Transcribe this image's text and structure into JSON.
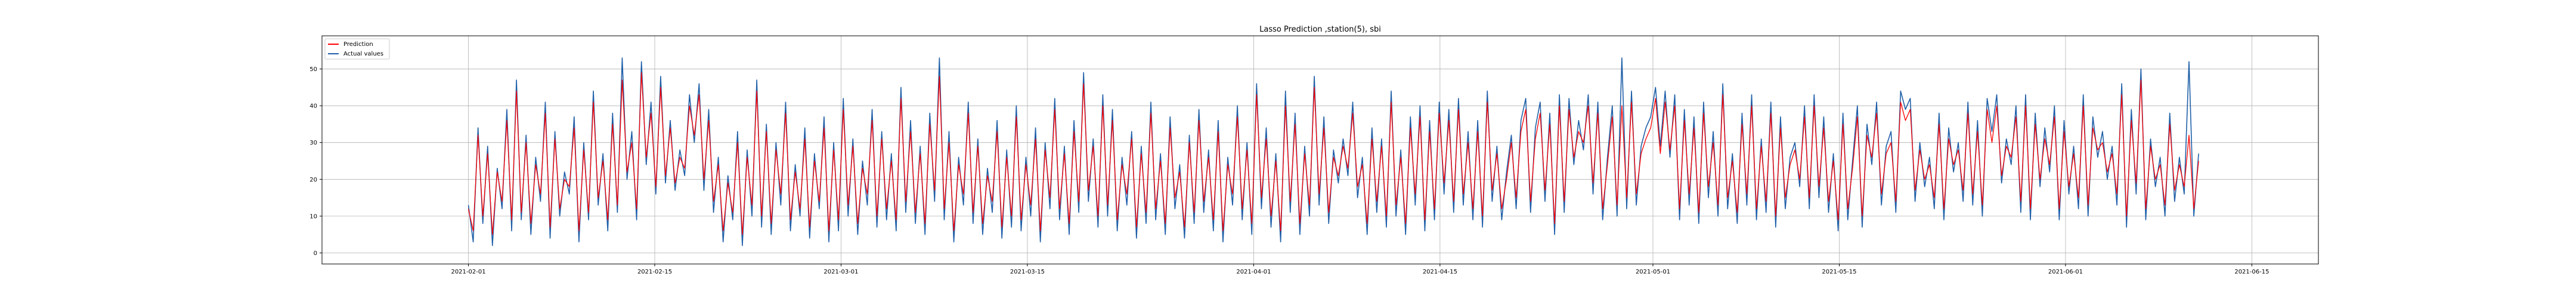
{
  "chart_data": {
    "type": "line",
    "title": "Lasso Prediction ,station(5), sbi",
    "xlabel": "",
    "ylabel": "",
    "x_range": [
      "2021-01-21",
      "2021-06-20"
    ],
    "ylim": [
      -3,
      59
    ],
    "x_ticks": [
      "2021-02-01",
      "2021-02-15",
      "2021-03-01",
      "2021-03-15",
      "2021-04-01",
      "2021-04-15",
      "2021-05-01",
      "2021-05-15",
      "2021-06-01",
      "2021-06-15"
    ],
    "y_ticks": [
      0,
      10,
      20,
      30,
      40,
      50
    ],
    "grid": true,
    "legend": "top-left",
    "series": [
      {
        "name": "Prediction",
        "color": "#ff0000",
        "x_start": "2021-02-01",
        "x_end": "2021-06-11",
        "values": [
          12,
          6,
          32,
          10,
          27,
          5,
          22,
          14,
          36,
          9,
          44,
          11,
          30,
          8,
          24,
          16,
          38,
          7,
          31,
          12,
          20,
          18,
          34,
          6,
          28,
          11,
          41,
          15,
          25,
          9,
          35,
          13,
          47,
          22,
          30,
          12,
          49,
          26,
          38,
          18,
          45,
          21,
          34,
          19,
          26,
          23,
          40,
          32,
          43,
          20,
          36,
          14,
          24,
          6,
          19,
          11,
          30,
          5,
          26,
          13,
          44,
          10,
          33,
          8,
          28,
          16,
          38,
          9,
          22,
          12,
          31,
          7,
          25,
          14,
          34,
          6,
          28,
          9,
          39,
          13,
          29,
          8,
          23,
          16,
          36,
          10,
          31,
          12,
          25,
          9,
          42,
          14,
          33,
          11,
          27,
          8,
          35,
          17,
          48,
          12,
          30,
          6,
          24,
          16,
          38,
          11,
          29,
          8,
          21,
          14,
          33,
          7,
          26,
          10,
          37,
          9,
          24,
          13,
          31,
          6,
          28,
          15,
          39,
          12,
          27,
          8,
          33,
          14,
          46,
          17,
          29,
          10,
          40,
          13,
          36,
          9,
          24,
          16,
          31,
          7,
          27,
          11,
          38,
          12,
          25,
          8,
          34,
          15,
          22,
          7,
          30,
          11,
          36,
          14,
          26,
          9,
          33,
          6,
          24,
          16,
          37,
          12,
          28,
          8,
          43,
          15,
          31,
          10,
          25,
          6,
          40,
          14,
          35,
          8,
          27,
          13,
          45,
          16,
          34,
          11,
          26,
          21,
          29,
          23,
          38,
          18,
          24,
          8,
          31,
          14,
          29,
          10,
          41,
          13,
          26,
          8,
          34,
          16,
          37,
          9,
          33,
          12,
          38,
          19,
          36,
          14,
          39,
          16,
          30,
          12,
          33,
          10,
          41,
          17,
          27,
          12,
          20,
          30,
          15,
          33,
          39,
          14,
          31,
          38,
          17,
          35,
          8,
          40,
          14,
          39,
          26,
          33,
          30,
          40,
          19,
          38,
          12,
          24,
          37,
          13,
          40,
          15,
          41,
          16,
          27,
          31,
          34,
          42,
          27,
          41,
          28,
          40,
          12,
          36,
          16,
          34,
          11,
          38,
          18,
          30,
          13,
          43,
          15,
          25,
          11,
          35,
          16,
          40,
          12,
          29,
          14,
          38,
          10,
          34,
          15,
          24,
          28,
          20,
          37,
          15,
          40,
          18,
          34,
          14,
          25,
          9,
          35,
          12,
          23,
          37,
          10,
          32,
          26,
          38,
          16,
          27,
          30,
          14,
          41,
          36,
          39,
          17,
          28,
          20,
          24,
          15,
          35,
          12,
          31,
          24,
          28,
          17,
          38,
          16,
          33,
          13,
          39,
          30,
          40,
          21,
          29,
          26,
          37,
          14,
          40,
          12,
          35,
          20,
          31,
          24,
          37,
          12,
          33,
          18,
          27,
          15,
          40,
          13,
          34,
          28,
          30,
          22,
          27,
          16,
          43,
          10,
          36,
          19,
          47,
          12,
          29,
          20,
          24,
          13,
          35,
          17,
          24,
          18,
          32,
          12,
          25
        ]
      },
      {
        "name": "Actual values",
        "color": "#1f5fa8",
        "x_start": "2021-02-01",
        "x_end": "2021-06-11",
        "values": [
          13,
          3,
          34,
          8,
          29,
          2,
          23,
          12,
          39,
          6,
          47,
          9,
          32,
          5,
          26,
          14,
          41,
          4,
          33,
          10,
          22,
          16,
          37,
          3,
          30,
          9,
          44,
          13,
          27,
          6,
          38,
          11,
          53,
          20,
          33,
          9,
          52,
          24,
          41,
          16,
          48,
          19,
          36,
          17,
          28,
          21,
          43,
          30,
          46,
          17,
          39,
          11,
          26,
          3,
          21,
          9,
          33,
          2,
          28,
          10,
          47,
          7,
          35,
          5,
          30,
          13,
          41,
          6,
          24,
          10,
          34,
          4,
          27,
          12,
          37,
          3,
          30,
          6,
          42,
          10,
          31,
          5,
          25,
          13,
          39,
          7,
          33,
          9,
          27,
          6,
          45,
          11,
          36,
          8,
          29,
          5,
          38,
          14,
          53,
          9,
          33,
          3,
          26,
          13,
          41,
          8,
          31,
          5,
          23,
          11,
          36,
          4,
          28,
          7,
          40,
          6,
          26,
          10,
          34,
          3,
          30,
          12,
          42,
          9,
          29,
          5,
          36,
          11,
          49,
          14,
          31,
          7,
          43,
          10,
          39,
          6,
          26,
          13,
          33,
          4,
          29,
          8,
          41,
          9,
          27,
          5,
          37,
          12,
          24,
          4,
          32,
          8,
          39,
          11,
          28,
          6,
          36,
          3,
          26,
          13,
          40,
          9,
          30,
          5,
          46,
          12,
          34,
          7,
          27,
          3,
          44,
          11,
          38,
          5,
          29,
          10,
          48,
          13,
          37,
          8,
          28,
          19,
          31,
          21,
          41,
          15,
          26,
          5,
          34,
          11,
          31,
          7,
          44,
          10,
          28,
          5,
          37,
          13,
          40,
          6,
          36,
          9,
          41,
          16,
          39,
          11,
          42,
          13,
          33,
          9,
          36,
          7,
          44,
          14,
          29,
          9,
          22,
          32,
          12,
          36,
          42,
          11,
          34,
          41,
          14,
          38,
          5,
          43,
          11,
          42,
          24,
          36,
          28,
          43,
          16,
          41,
          9,
          26,
          40,
          10,
          53,
          12,
          44,
          13,
          29,
          34,
          37,
          45,
          29,
          44,
          26,
          43,
          9,
          39,
          13,
          37,
          8,
          41,
          15,
          33,
          10,
          46,
          12,
          27,
          8,
          38,
          13,
          43,
          9,
          31,
          11,
          41,
          7,
          37,
          12,
          26,
          30,
          18,
          40,
          12,
          43,
          15,
          37,
          11,
          27,
          6,
          38,
          9,
          25,
          40,
          7,
          35,
          24,
          41,
          13,
          29,
          33,
          11,
          44,
          39,
          42,
          14,
          30,
          18,
          26,
          12,
          38,
          9,
          34,
          22,
          30,
          14,
          41,
          13,
          36,
          10,
          42,
          33,
          43,
          19,
          31,
          24,
          40,
          11,
          43,
          9,
          38,
          18,
          34,
          22,
          40,
          9,
          36,
          16,
          29,
          12,
          43,
          10,
          37,
          26,
          33,
          20,
          29,
          13,
          46,
          7,
          39,
          16,
          50,
          9,
          31,
          18,
          26,
          10,
          38,
          14,
          26,
          16,
          52,
          10,
          27
        ]
      }
    ]
  }
}
